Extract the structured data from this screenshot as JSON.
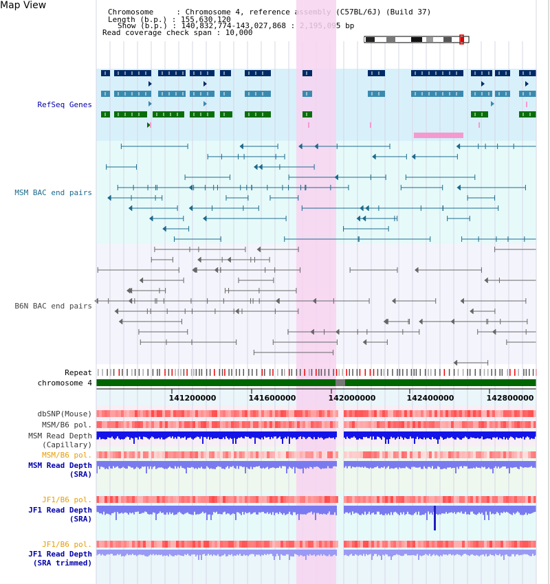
{
  "title": "Map View",
  "info": {
    "chromosome": "Chromosome     : Chromosome 4, reference assembly (C57BL/6J) (Build 37)",
    "length": "Length (b.p.) : 155,630,120",
    "show": "Show (b.p.) : 140,832,774-143,027,868 : 2,195,095 bp",
    "span": "Read coverage check span : 10,000"
  },
  "labels": {
    "refseq": "RefSeq Genes",
    "msm_bac": "MSM BAC end pairs",
    "b6n_bac": "B6N BAC end pairs",
    "repeat": "Repeat",
    "chromosome": "chromosome 4",
    "dbsnp": "dbSNP(Mouse)",
    "msm_pol1": "MSM/B6 pol.",
    "msm_depth_cap": "MSM Read Depth\n(Capillary)",
    "msm_pol2": "MSM/B6 pol.",
    "msm_depth_sra": "MSM Read Depth\n(SRA)",
    "jf1_pol1": "JF1/B6 pol.",
    "jf1_depth_sra": "JF1 Read Depth\n(SRA)",
    "jf1_pol2": "JF1/B6 pol.",
    "jf1_depth_trim": "JF1 Read Depth\n(SRA trimmed)"
  },
  "axis_ticks": [
    "141200000",
    "141600000",
    "142000000",
    "142400000",
    "142800000"
  ],
  "colors": {
    "refseq_bg": "#d8f0fa",
    "msm_bg": "#e6fafa",
    "b6n_bg": "#f4f4fc",
    "highlight": "#f7d4f0",
    "gene_dark": "#002a66",
    "gene_mid": "#3a8ab0",
    "gene_green": "#0a6e0a",
    "chrom_green": "#006600",
    "snp_red": "#e83030",
    "depth_blue": "#1414e8",
    "depth_lavender": "#7a7af0"
  }
}
